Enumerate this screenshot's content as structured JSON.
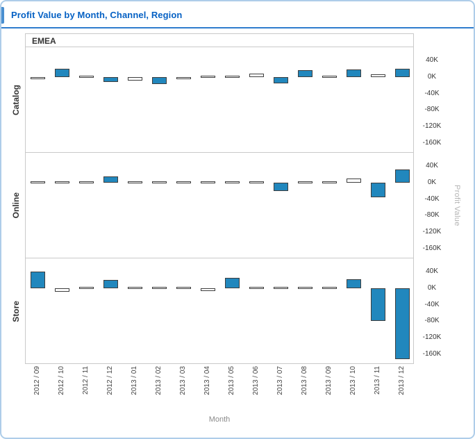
{
  "title": "Profit Value by Month, Channel, Region",
  "column_header": "EMEA",
  "axes": {
    "x_title": "Month",
    "y_title": "Profit Value"
  },
  "colors": {
    "bar_fill": "#2187bd",
    "bar_empty_fill": "#ffffff",
    "bar_stroke": "#3d3d3d",
    "title_text": "#0661c4",
    "frame_border": "#aecde9",
    "title_rule": "#2f7ccd",
    "panel_border": "#c9c9c9"
  },
  "chart_data": {
    "type": "bar",
    "facet_column": "EMEA",
    "facet_rows": [
      "Catalog",
      "Online",
      "Store"
    ],
    "categories": [
      "2012 / 09",
      "2012 / 10",
      "2012 / 11",
      "2012 / 12",
      "2013 / 01",
      "2013 / 02",
      "2013 / 03",
      "2013 / 04",
      "2013 / 05",
      "2013 / 06",
      "2013 / 07",
      "2013 / 08",
      "2013 / 09",
      "2013 / 10",
      "2013 / 11",
      "2013 / 12"
    ],
    "xlabel": "Month",
    "ylabel": "Profit Value",
    "y_unit": "thousands (K)",
    "ylim": [
      -184,
      72
    ],
    "yticks": [
      40,
      0,
      -40,
      -80,
      -120,
      -160
    ],
    "ytick_labels": [
      "40K",
      "0K",
      "-40K",
      "-80K",
      "-120K",
      "-160K"
    ],
    "grid": false,
    "legend": "none",
    "series": [
      {
        "name": "Catalog",
        "values": [
          -6,
          20,
          0,
          -12,
          -8,
          -18,
          -6,
          0,
          0,
          8,
          -15,
          16,
          2,
          18,
          6,
          20
        ],
        "filled": [
          false,
          true,
          false,
          true,
          false,
          true,
          false,
          false,
          false,
          false,
          true,
          true,
          false,
          true,
          false,
          true
        ]
      },
      {
        "name": "Online",
        "values": [
          0,
          0,
          0,
          15,
          0,
          0,
          0,
          0,
          0,
          0,
          -20,
          0,
          0,
          10,
          -35,
          32
        ],
        "filled": [
          false,
          false,
          false,
          true,
          false,
          false,
          false,
          false,
          false,
          false,
          true,
          false,
          false,
          false,
          true,
          true
        ]
      },
      {
        "name": "Store",
        "values": [
          40,
          -8,
          0,
          20,
          5,
          0,
          -5,
          -7,
          25,
          0,
          0,
          -2,
          0,
          22,
          -80,
          -172
        ],
        "filled": [
          true,
          false,
          false,
          true,
          false,
          false,
          false,
          false,
          true,
          false,
          false,
          false,
          false,
          true,
          true,
          true
        ]
      }
    ]
  }
}
